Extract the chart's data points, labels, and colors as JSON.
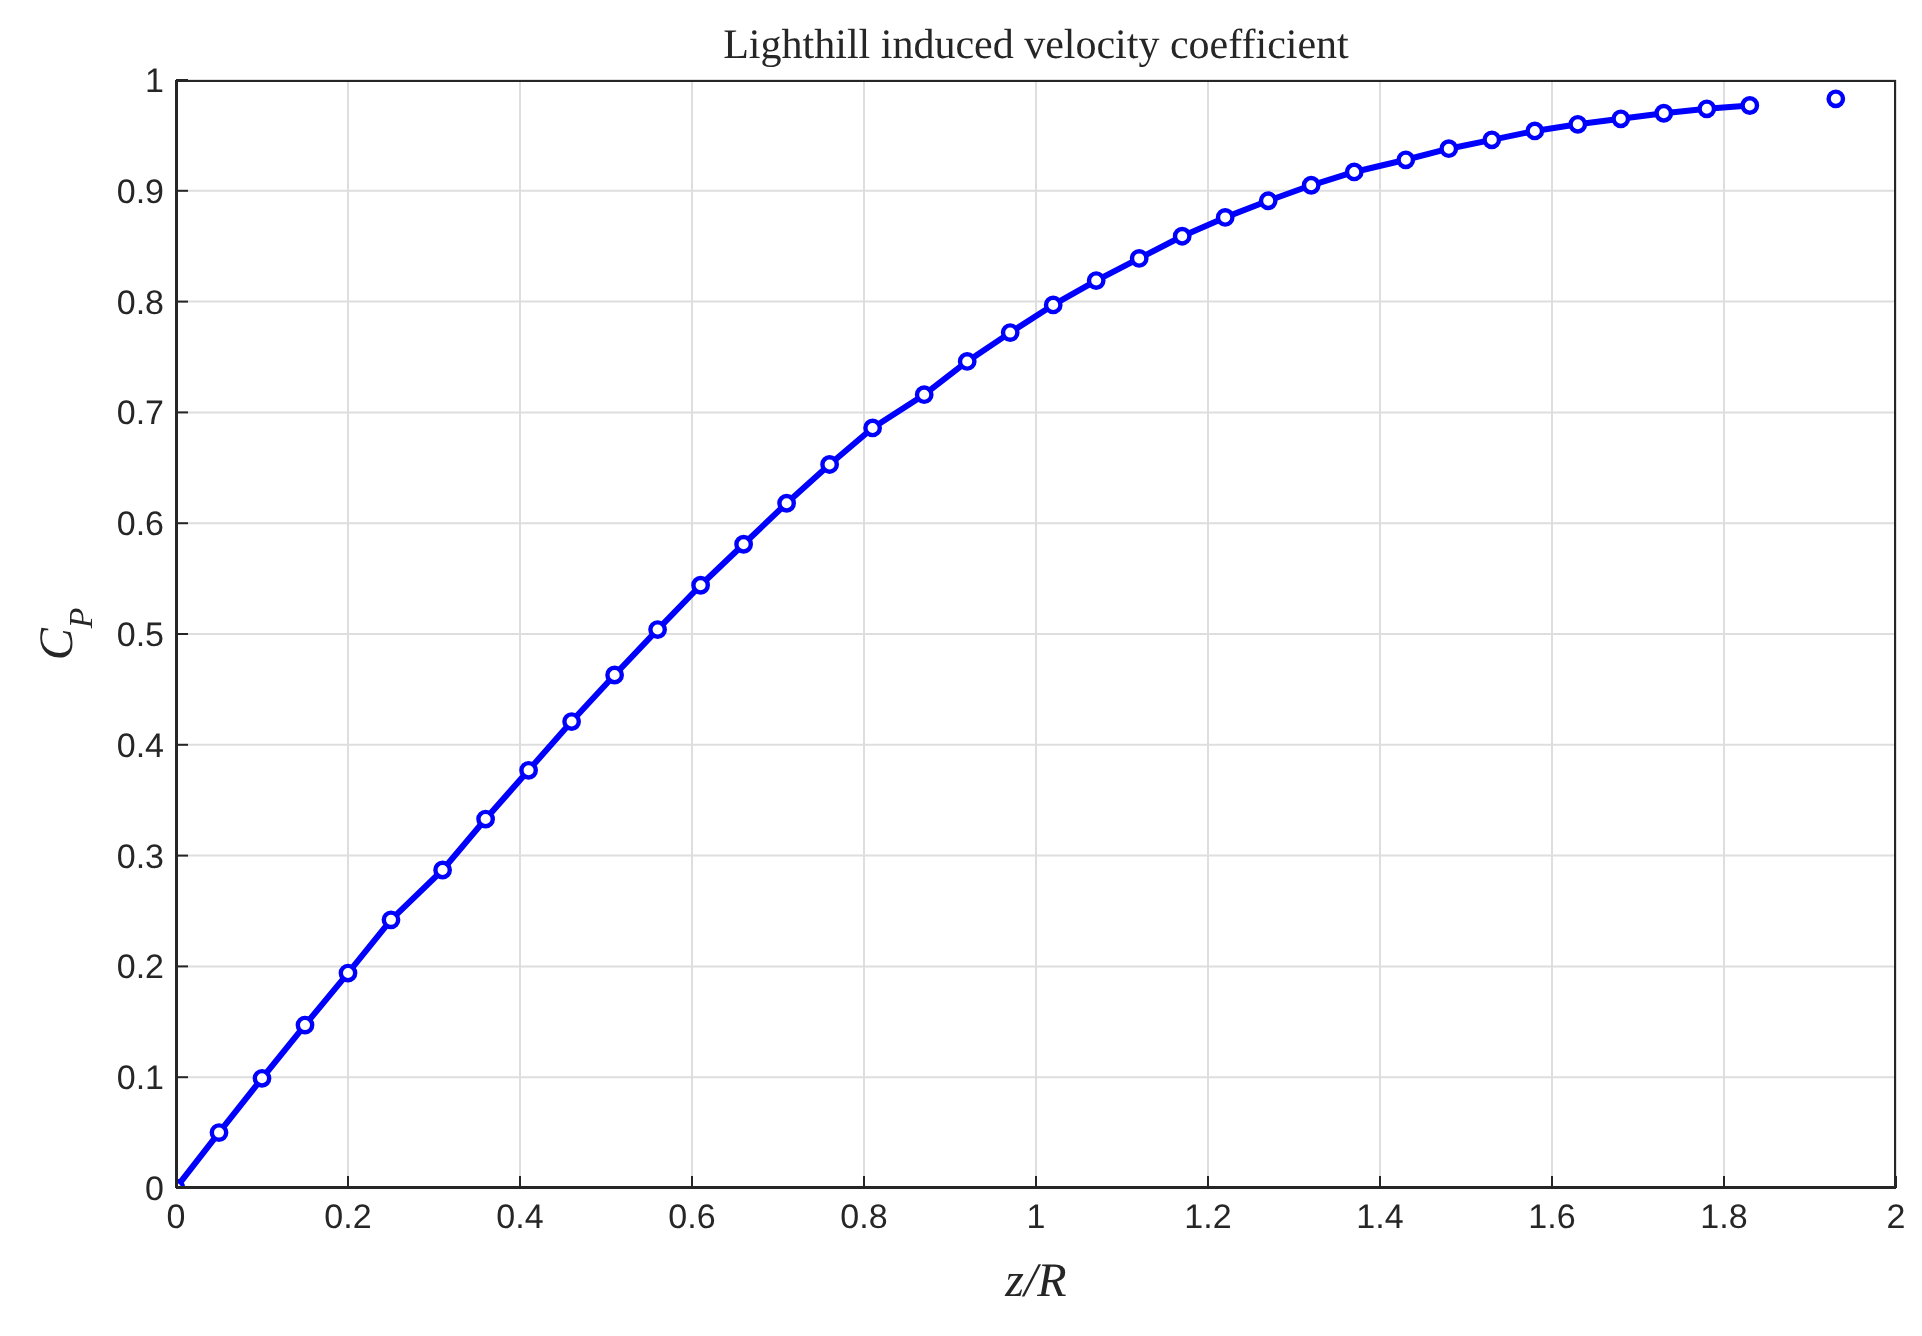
{
  "chart_data": {
    "type": "line",
    "title": "Lighthill induced velocity coefficient",
    "xlabel": "z/R",
    "ylabel": "C$_{P}$",
    "xlim": [
      0,
      2
    ],
    "xticks": [
      0,
      0.2,
      0.4,
      0.6,
      0.8,
      1,
      1.2,
      1.4,
      1.6,
      1.8,
      2
    ],
    "ylim": [
      0,
      1
    ],
    "yticks": [
      0,
      0.1,
      0.2,
      0.3,
      0.4,
      0.5,
      0.6,
      0.7,
      0.8,
      0.9,
      1
    ],
    "grid": true,
    "marker": "circle",
    "line_style": "solid",
    "series": [
      {
        "color": "#0000ff",
        "x": [
          0,
          0.05,
          0.1,
          0.15,
          0.2,
          0.25,
          0.31,
          0.36,
          0.41,
          0.46,
          0.51,
          0.56,
          0.61,
          0.66,
          0.71,
          0.76,
          0.81,
          0.87,
          0.92,
          0.97,
          1.02,
          1.07,
          1.12,
          1.17,
          1.22,
          1.27,
          1.32,
          1.37,
          1.43,
          1.48,
          1.53,
          1.58,
          1.63,
          1.68,
          1.73,
          1.78,
          1.83
        ],
        "values": [
          0,
          0.05,
          0.099,
          0.147,
          0.194,
          0.242,
          0.287,
          0.333,
          0.377,
          0.421,
          0.463,
          0.504,
          0.544,
          0.581,
          0.618,
          0.653,
          0.686,
          0.716,
          0.746,
          0.772,
          0.797,
          0.819,
          0.839,
          0.859,
          0.876,
          0.891,
          0.905,
          0.917,
          0.928,
          0.938,
          0.946,
          0.954,
          0.96,
          0.965,
          0.97,
          0.974,
          0.977
        ]
      },
      {
        "type": "scatter",
        "color": "#0000ff",
        "x": [
          1.93
        ],
        "values": [
          0.983
        ]
      }
    ]
  }
}
